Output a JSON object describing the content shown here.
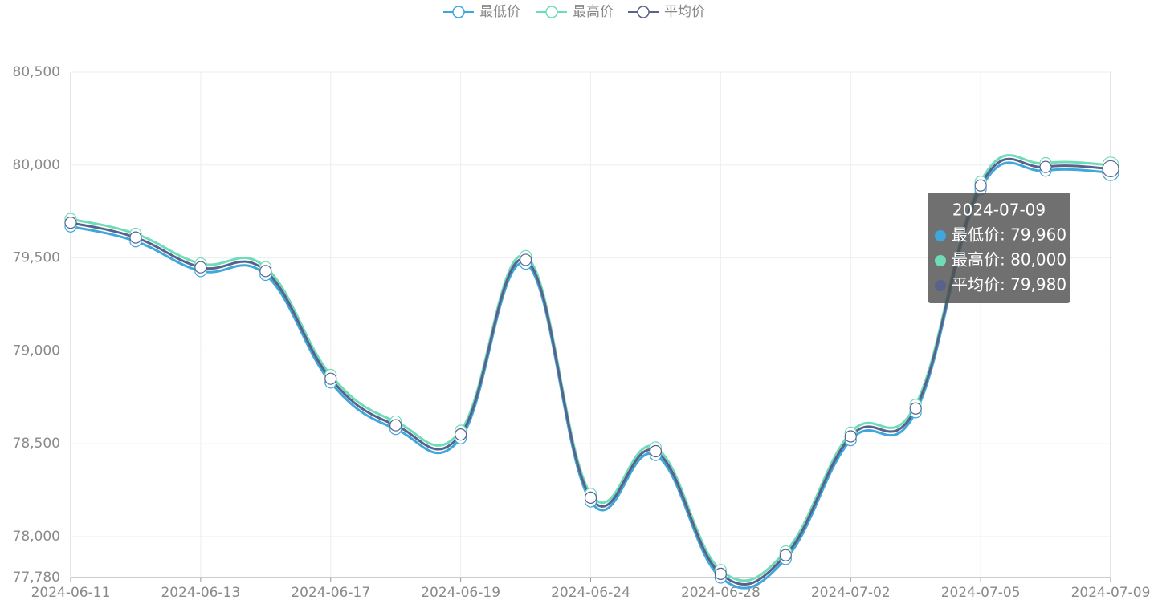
{
  "chart_data": {
    "type": "line",
    "smooth": true,
    "grid": true,
    "legend": "top",
    "categories": [
      "2024-06-11",
      null,
      "2024-06-13",
      null,
      "2024-06-17",
      null,
      "2024-06-19",
      null,
      "2024-06-24",
      null,
      "2024-06-28",
      null,
      "2024-07-02",
      null,
      "2024-07-05",
      null,
      "2024-07-09"
    ],
    "series": [
      {
        "name": "最低价",
        "color": "#3fa7dc",
        "values": [
          79670,
          79590,
          79430,
          79410,
          78830,
          78580,
          78530,
          79470,
          78190,
          78440,
          77780,
          77880,
          78520,
          78670,
          79870,
          79970,
          79960
        ]
      },
      {
        "name": "最高价",
        "color": "#6fdcb9",
        "values": [
          79710,
          79630,
          79470,
          79450,
          78870,
          78620,
          78570,
          79510,
          78230,
          78480,
          77820,
          77920,
          78560,
          78710,
          79910,
          80010,
          80000
        ]
      },
      {
        "name": "平均价",
        "color": "#58628a",
        "values": [
          79690,
          79610,
          79450,
          79430,
          78850,
          78600,
          78550,
          79490,
          78210,
          78460,
          77800,
          77900,
          78540,
          78690,
          79890,
          79990,
          79980
        ]
      }
    ],
    "ylim": [
      77780,
      80500
    ],
    "yticks": [
      {
        "value": 77780,
        "label": "77,780"
      },
      {
        "value": 78000,
        "label": "78,000"
      },
      {
        "value": 78500,
        "label": "78,500"
      },
      {
        "value": 79000,
        "label": "79,000"
      },
      {
        "value": 79500,
        "label": "79,500"
      },
      {
        "value": 80000,
        "label": "80,000"
      },
      {
        "value": 80500,
        "label": "80,500"
      }
    ],
    "tooltip": {
      "title": "2024-07-09",
      "rows": [
        "最低价: 79,960",
        "最高价: 80,000",
        "平均价: 79,980"
      ]
    }
  }
}
